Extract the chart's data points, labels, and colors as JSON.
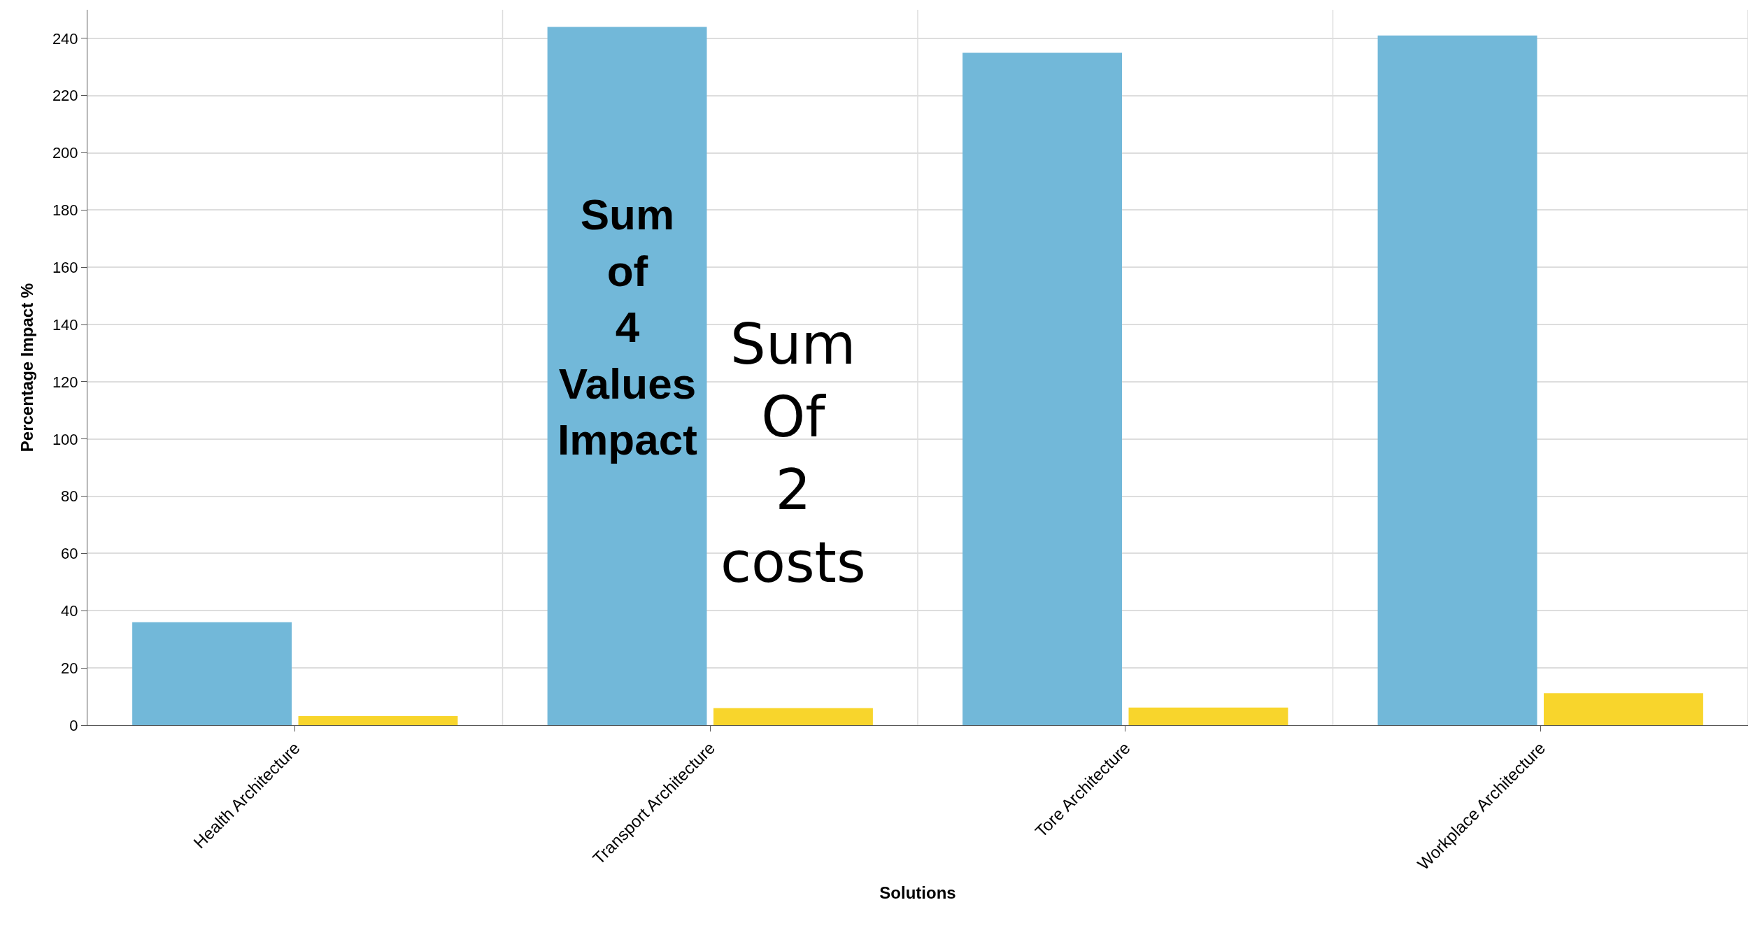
{
  "chart_data": {
    "type": "bar",
    "xlabel": "Solutions",
    "ylabel": "Percentage Impact %",
    "categories": [
      "Health Architecture",
      "Transport Architecture",
      "Tore Architecture",
      "Workplace Architecture"
    ],
    "series": [
      {
        "color": "#72b8d9",
        "values": [
          36,
          244,
          235,
          241
        ]
      },
      {
        "color": "#f8d52c",
        "values": [
          3.2,
          6,
          6.2,
          11.2
        ]
      }
    ],
    "ylim": [
      0,
      250
    ],
    "yticks": [
      0,
      20,
      40,
      60,
      80,
      100,
      120,
      140,
      160,
      180,
      200,
      220,
      240
    ],
    "grid": true,
    "annotations": [
      "Sum of 4 Values Impact",
      "Sum Of 2 costs"
    ]
  }
}
